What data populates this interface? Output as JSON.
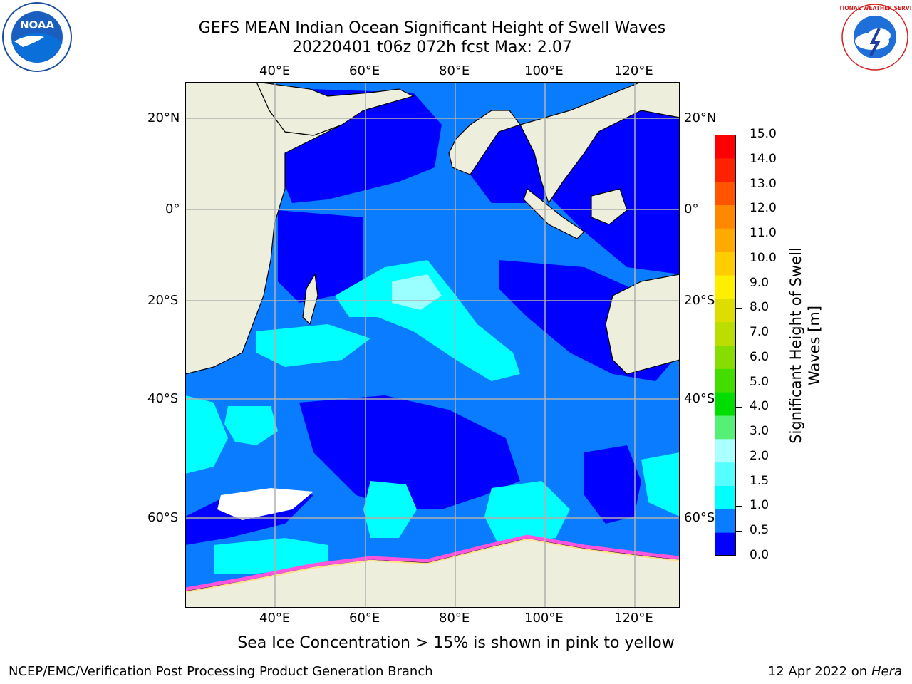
{
  "title": {
    "line1": "GEFS MEAN Indian Ocean Significant Height of Swell Waves",
    "line2": "20220401 t06z 072h fcst   Max: 2.07"
  },
  "logos": {
    "left": {
      "icon": "noaa-logo-icon",
      "text": "NOAA"
    },
    "right": {
      "icon": "nws-logo-icon",
      "text": "NATIONAL WEATHER SERVICE"
    }
  },
  "map": {
    "lon_labels": [
      "40°E",
      "60°E",
      "80°E",
      "100°E",
      "120°E"
    ],
    "lat_labels_left": [
      "20°N",
      "0°",
      "20°S",
      "40°S",
      "60°S"
    ],
    "lat_labels_right": [
      "20°N",
      "0°",
      "20°S",
      "40°S",
      "60°S"
    ],
    "colors": {
      "land": "#eeeedc",
      "deep_blue": "#0000ff",
      "mid_blue": "#0a7cff",
      "cyan": "#00ffff",
      "light_cyan": "#9cffff",
      "ice_pink": "#ff55dd",
      "ice_yellow": "#ffe088",
      "grid": "#b0b0b0"
    }
  },
  "colorbar": {
    "ticks": [
      "15.0",
      "14.0",
      "13.0",
      "12.0",
      "11.0",
      "10.0",
      "9.0",
      "8.0",
      "7.0",
      "6.0",
      "5.0",
      "4.0",
      "3.0",
      "2.0",
      "1.5",
      "1.0",
      "0.5",
      "0.0"
    ],
    "colors_bottom_to_top": [
      "#0000ff",
      "#0a7cff",
      "#00ffff",
      "#55ffff",
      "#aaffff",
      "#55f075",
      "#00dd00",
      "#44dd00",
      "#88dd00",
      "#bbdd00",
      "#dddd00",
      "#ffee00",
      "#ffcc00",
      "#ffaa00",
      "#ff8800",
      "#ff5500",
      "#ff2200",
      "#ff0000"
    ],
    "label_line1": "Significant Height of Swell",
    "label_line2": "Waves [m]"
  },
  "note": "Sea Ice Concentration > 15% is shown in pink to yellow",
  "footer": {
    "left": "NCEP/EMC/Verification Post Processing Product Generation Branch",
    "right_prefix": "12 Apr 2022 on ",
    "right_host": "Hera"
  }
}
